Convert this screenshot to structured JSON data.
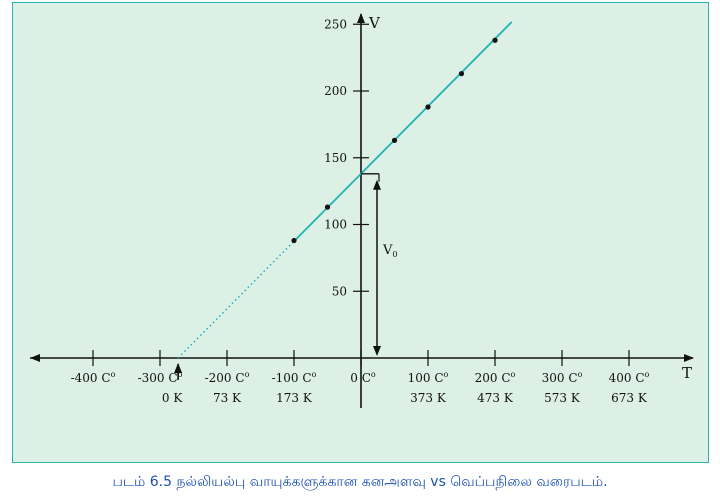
{
  "chart_data": {
    "type": "line",
    "x_axis_title": "T",
    "y_axis_title": "V",
    "intercept_label": "V",
    "intercept_subscript": "0",
    "celsius_ticks": [
      {
        "value": -400,
        "label": "-400 C"
      },
      {
        "value": -300,
        "label": "-300 C"
      },
      {
        "value": -200,
        "label": "-200 C"
      },
      {
        "value": -100,
        "label": "-100 C"
      },
      {
        "value": 0,
        "label": "0 C"
      },
      {
        "value": 100,
        "label": "100 C"
      },
      {
        "value": 200,
        "label": "200 C"
      },
      {
        "value": 300,
        "label": "300 C"
      },
      {
        "value": 400,
        "label": "400 C"
      }
    ],
    "degree_mark": "o",
    "kelvin_ticks": [
      {
        "value": -273,
        "label": "0 K"
      },
      {
        "value": -200,
        "label": "73 K"
      },
      {
        "value": -100,
        "label": "173 K"
      },
      {
        "value": 100,
        "label": "373 K"
      },
      {
        "value": 200,
        "label": "473 K"
      },
      {
        "value": 300,
        "label": "573 K"
      },
      {
        "value": 400,
        "label": "673 K"
      }
    ],
    "y_ticks": [
      50,
      100,
      150,
      200,
      250
    ],
    "xlim": [
      -500,
      500
    ],
    "ylim": [
      0,
      250
    ],
    "intercept": 138,
    "slope": 0.5055,
    "line_solid_range": [
      -100,
      225
    ],
    "line_dotted_range": [
      -273,
      -100
    ],
    "points": [
      {
        "x": -100,
        "y": 88
      },
      {
        "x": -50,
        "y": 113
      },
      {
        "x": 50,
        "y": 163
      },
      {
        "x": 100,
        "y": 188
      },
      {
        "x": 150,
        "y": 213
      },
      {
        "x": 200,
        "y": 238
      }
    ],
    "colors": {
      "line": "#1fb3b3",
      "axis": "#111111",
      "background": "#ddf0e6"
    }
  },
  "caption": "படம் 6.5 நல்லியல்பு வாயுக்களுக்கான கனஅளவு vs வெப்பநிலை வரைபடம்."
}
